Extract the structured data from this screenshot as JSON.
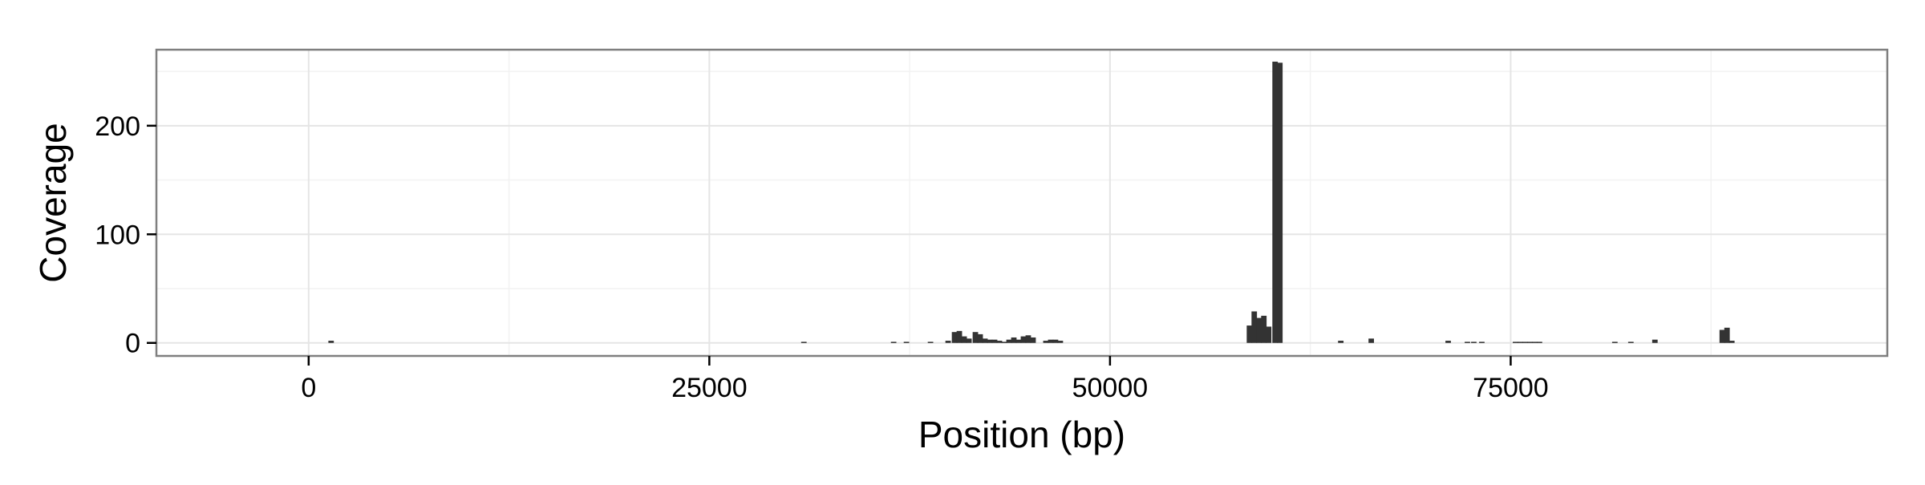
{
  "chart_data": {
    "type": "bar",
    "title": "",
    "xlabel": "Position (bp)",
    "ylabel": "Coverage",
    "xlim": [
      -9500,
      98500
    ],
    "ylim": [
      -12,
      270
    ],
    "x_ticks": [
      0,
      25000,
      50000,
      75000
    ],
    "x_tick_labels": [
      "0",
      "25000",
      "50000",
      "75000"
    ],
    "y_ticks": [
      0,
      100,
      200
    ],
    "y_tick_labels": [
      "0",
      "100",
      "200"
    ],
    "grid": true,
    "bar_color": "#333333",
    "bin_width_bp": 400,
    "series": [
      {
        "x": [
          1400,
          30900,
          36500,
          37300,
          38800,
          39900,
          40300,
          40600,
          40900,
          41200,
          41600,
          41900,
          42200,
          42500,
          42800,
          43100,
          43400,
          43700,
          44000,
          44300,
          44600,
          44900,
          45200,
          46000,
          46300,
          46600,
          46900,
          58700,
          59000,
          59300,
          59600,
          59900,
          60300,
          60600,
          64400,
          66300,
          71100,
          72300,
          72700,
          73200,
          75300,
          75600,
          75900,
          76200,
          76500,
          76800,
          81500,
          82500,
          84000,
          88200,
          88500,
          88800
        ],
        "y": [
          2,
          1,
          1,
          1,
          1,
          2,
          10,
          11,
          6,
          4,
          10,
          8,
          4,
          3,
          3,
          2,
          1,
          3,
          5,
          3,
          6,
          7,
          5,
          2,
          3,
          3,
          2,
          16,
          29,
          23,
          25,
          15,
          259,
          258,
          2,
          4,
          2,
          1,
          1,
          1,
          1,
          1,
          1,
          1,
          1,
          1,
          1,
          1,
          3,
          12,
          14,
          2
        ]
      }
    ]
  }
}
